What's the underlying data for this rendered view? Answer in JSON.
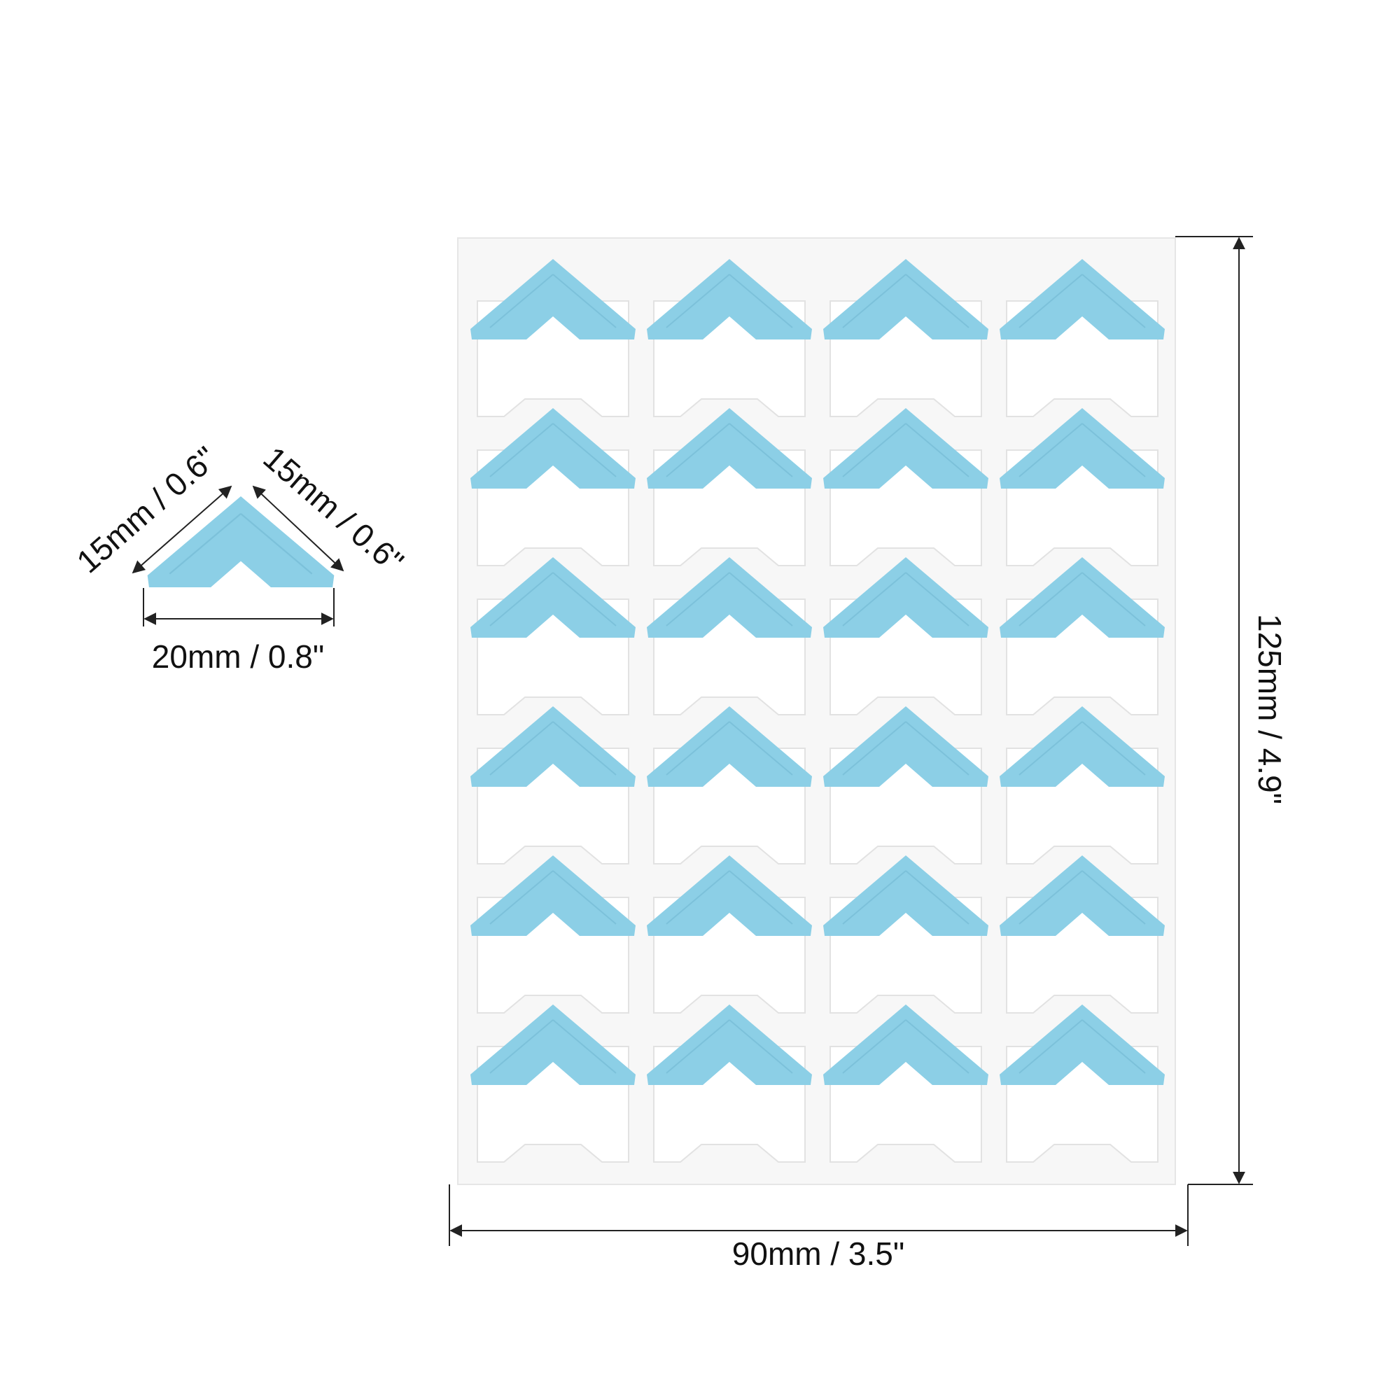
{
  "dimensions": {
    "corner_left_edge": "15mm / 0.6\"",
    "corner_right_edge": "15mm / 0.6\"",
    "corner_width": "20mm / 0.8\"",
    "sheet_width": "90mm / 3.5\"",
    "sheet_height": "125mm / 4.9\""
  }
}
